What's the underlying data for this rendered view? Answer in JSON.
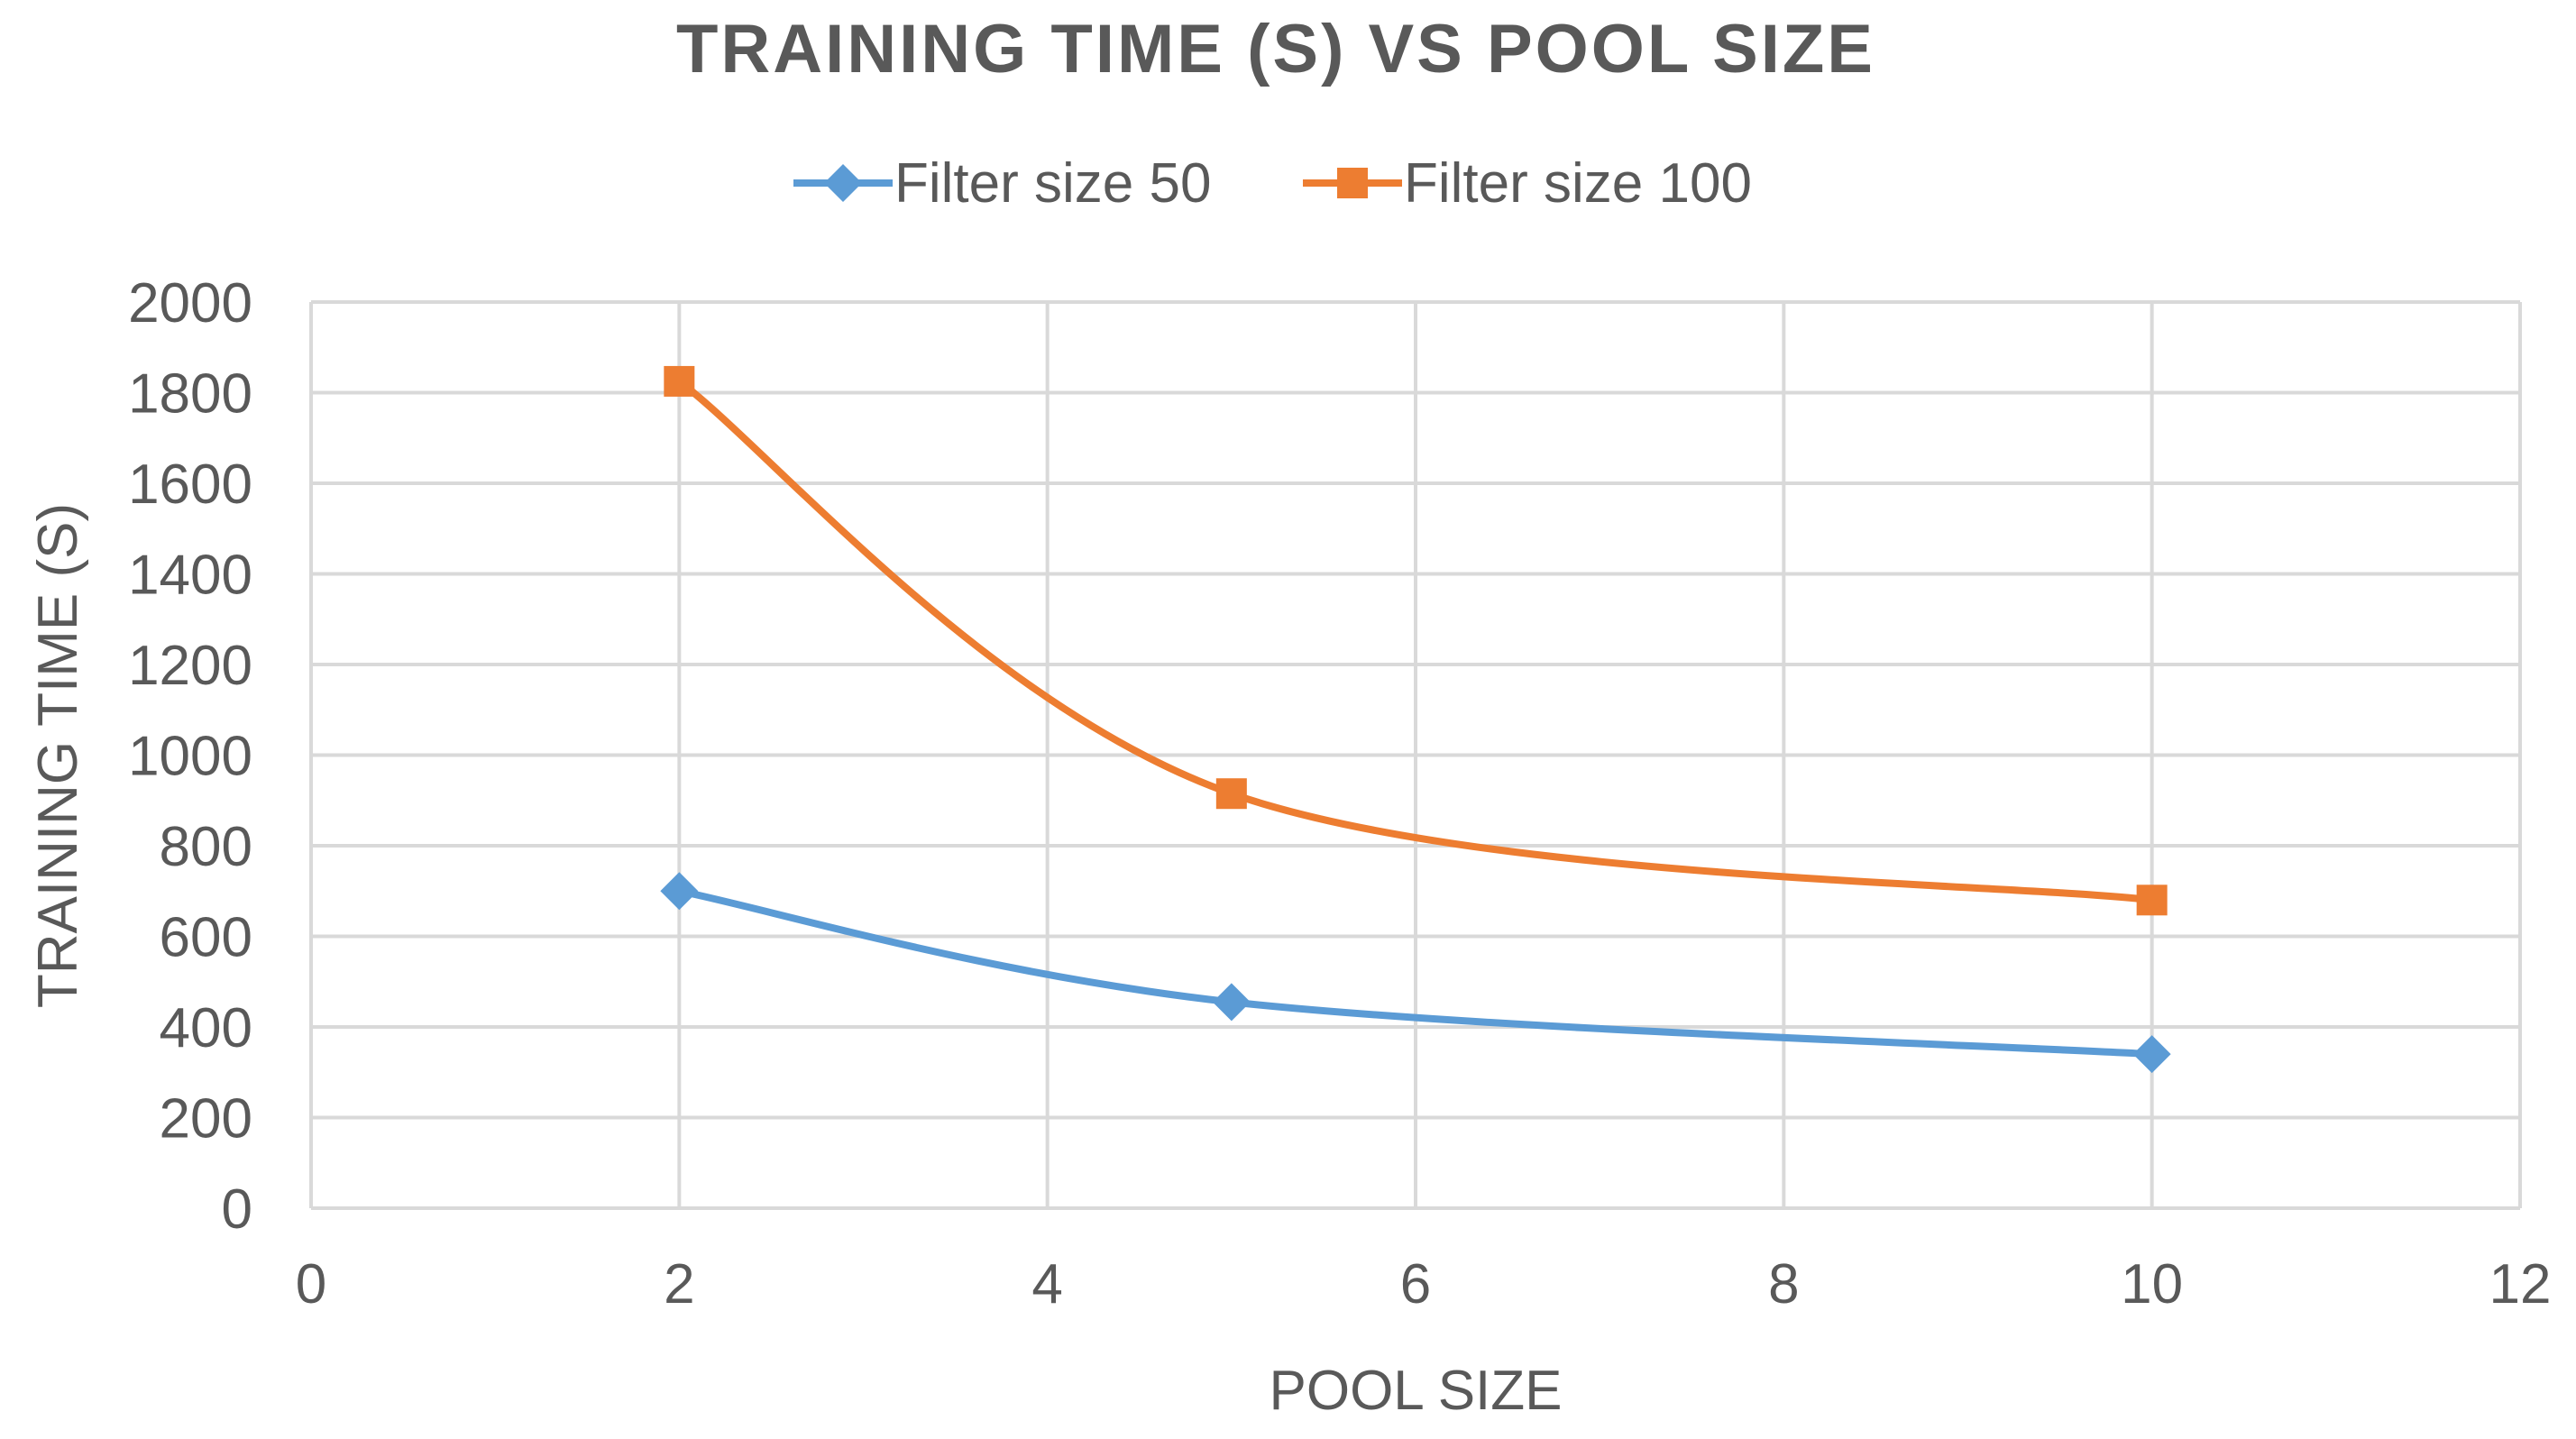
{
  "chart_data": {
    "type": "scatter",
    "title": "TRAINING TIME (S) VS POOL SIZE",
    "xlabel": "POOL SIZE",
    "ylabel": "TRAINING TIME (S)",
    "xlim": [
      0,
      12
    ],
    "ylim": [
      0,
      2000
    ],
    "x_ticks": [
      "0",
      "2",
      "4",
      "6",
      "8",
      "10",
      "12"
    ],
    "y_ticks": [
      "0",
      "200",
      "400",
      "600",
      "800",
      "1000",
      "1200",
      "1400",
      "1600",
      "1800",
      "2000"
    ],
    "grid": true,
    "legend_position": "top",
    "smooth_lines": true,
    "series": [
      {
        "name": "Filter size 50",
        "color": "#5B9BD5",
        "marker": "diamond",
        "points": [
          {
            "x": 2,
            "y": 700
          },
          {
            "x": 5,
            "y": 455
          },
          {
            "x": 10,
            "y": 340
          }
        ]
      },
      {
        "name": "Filter size 100",
        "color": "#ED7D31",
        "marker": "square",
        "points": [
          {
            "x": 2,
            "y": 1825
          },
          {
            "x": 5,
            "y": 915
          },
          {
            "x": 10,
            "y": 680
          }
        ]
      }
    ]
  }
}
